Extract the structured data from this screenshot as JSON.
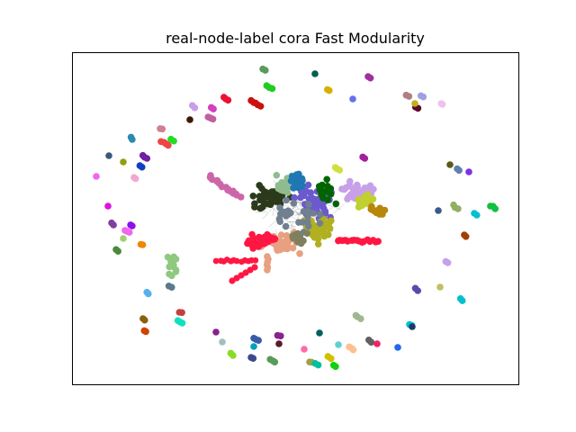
{
  "figure": {
    "title": "real-node-label cora Fast Modularity"
  },
  "graph": {
    "layout": "spring",
    "node_style": "filled circles, colored by community",
    "border": true,
    "axes_ticks": false,
    "palette": [
      "#1f77b4",
      "#ff1744",
      "#e8a080",
      "#c0b020",
      "#6a5acd",
      "#2a3a1a",
      "#b0b020",
      "#8fbc8f",
      "#ff69b4",
      "#006400",
      "#c8a0e8",
      "#00c0d0",
      "#cc44cc",
      "#ff8c00",
      "#7cfc00",
      "#4169e1",
      "#8b4513",
      "#20b2aa",
      "#dc143c",
      "#9400d3",
      "#556b2f",
      "#ffd700",
      "#cd5c5c",
      "#00ced1",
      "#da70d6",
      "#98fb98",
      "#4682b4",
      "#b8860b",
      "#e066ff",
      "#2e8b57"
    ]
  }
}
